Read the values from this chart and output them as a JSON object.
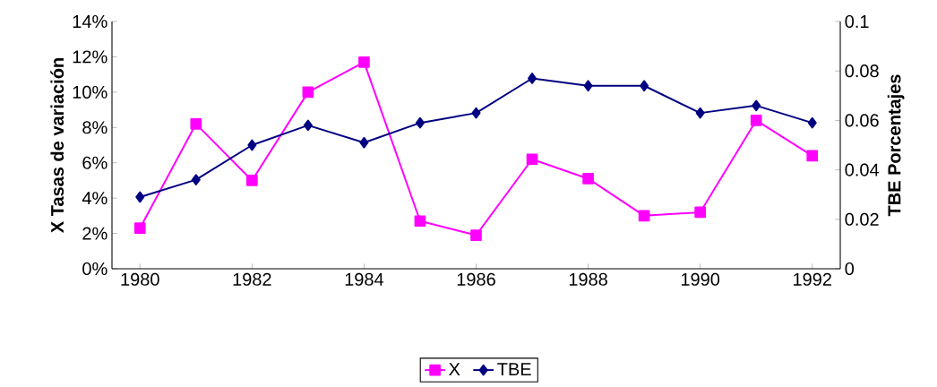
{
  "chart_data": {
    "type": "line",
    "x": [
      1980,
      1981,
      1982,
      1983,
      1984,
      1985,
      1986,
      1987,
      1988,
      1989,
      1990,
      1991,
      1992
    ],
    "series": [
      {
        "name": "X",
        "color": "#ff00ff",
        "marker": "square",
        "values": [
          2.3,
          8.2,
          5.0,
          10.0,
          11.7,
          2.7,
          1.9,
          6.2,
          5.1,
          3.0,
          3.2,
          8.4,
          6.4
        ]
      },
      {
        "name": "TBE",
        "color": "#000080",
        "marker": "diamond",
        "axis": "y2",
        "values": [
          0.029,
          0.036,
          0.05,
          0.058,
          0.051,
          0.059,
          0.063,
          0.077,
          0.074,
          0.074,
          0.063,
          0.066,
          0.059
        ]
      }
    ],
    "ylabel": "X Tasas de variación",
    "y2label": "TBE Porcentajes",
    "xlim": [
      1979.5,
      1992.5
    ],
    "xticks": [
      1980,
      1982,
      1984,
      1986,
      1988,
      1990,
      1992
    ],
    "ylim": [
      0,
      14
    ],
    "yticks": [
      {
        "value": 0,
        "label": "0%"
      },
      {
        "value": 2,
        "label": "2%"
      },
      {
        "value": 4,
        "label": "4%"
      },
      {
        "value": 6,
        "label": "6%"
      },
      {
        "value": 8,
        "label": "8%"
      },
      {
        "value": 10,
        "label": "10%"
      },
      {
        "value": 12,
        "label": "12%"
      },
      {
        "value": 14,
        "label": "14%"
      }
    ],
    "y2lim": [
      0,
      0.1
    ],
    "y2ticks": [
      0,
      0.02,
      0.04,
      0.06,
      0.08,
      0.1
    ],
    "legend": "bottom",
    "line_style": "solid"
  }
}
